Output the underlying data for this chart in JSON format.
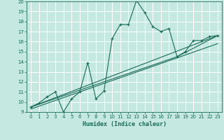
{
  "xlabel": "Humidex (Indice chaleur)",
  "bg_color": "#c5e8e0",
  "grid_color": "#b8d8d0",
  "line_color": "#1a6b5a",
  "xlim": [
    -0.5,
    23.5
  ],
  "ylim": [
    9,
    20
  ],
  "xticks": [
    0,
    1,
    2,
    3,
    4,
    5,
    6,
    7,
    8,
    9,
    10,
    11,
    12,
    13,
    14,
    15,
    16,
    17,
    18,
    19,
    20,
    21,
    22,
    23
  ],
  "yticks": [
    9,
    10,
    11,
    12,
    13,
    14,
    15,
    16,
    17,
    18,
    19,
    20
  ],
  "series_main_x": [
    0,
    1,
    2,
    3,
    4,
    5,
    6,
    7,
    8,
    9,
    10,
    11,
    12,
    13,
    14,
    15,
    16,
    17,
    18,
    19,
    20,
    21,
    22,
    23
  ],
  "series_main_y": [
    9.5,
    9.9,
    10.5,
    11.0,
    9.0,
    10.3,
    11.0,
    13.9,
    10.3,
    11.1,
    16.3,
    17.7,
    17.7,
    20.1,
    18.9,
    17.5,
    17.0,
    17.3,
    14.5,
    15.0,
    16.1,
    16.1,
    16.5,
    16.6
  ],
  "line1_x": [
    0,
    23
  ],
  "line1_y": [
    9.5,
    16.6
  ],
  "line2_x": [
    0,
    23
  ],
  "line2_y": [
    9.3,
    15.8
  ],
  "line3_x": [
    0,
    18,
    23
  ],
  "line3_y": [
    9.5,
    14.5,
    16.6
  ]
}
